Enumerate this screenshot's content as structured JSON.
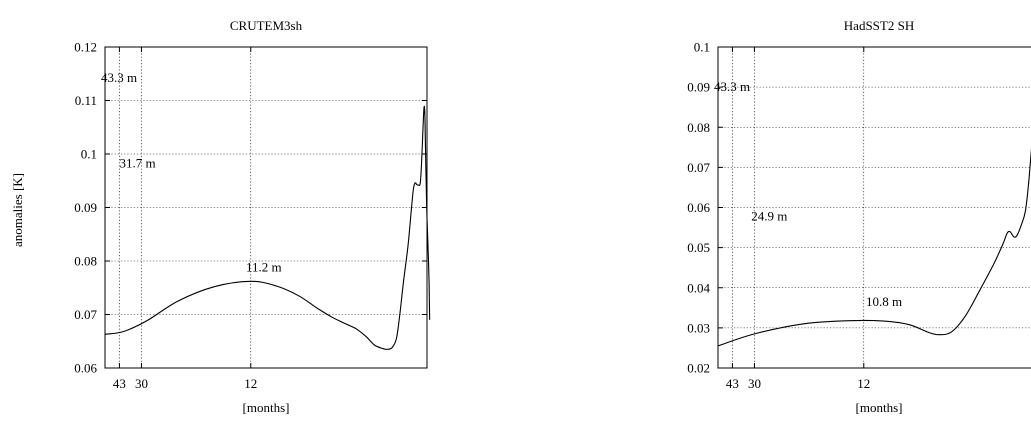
{
  "y_axis_label": "anomalies [K]",
  "chart_data": [
    {
      "type": "line",
      "title": "CRUTEM3sh",
      "xlabel": "[months]",
      "ylabel": "anomalies [K]",
      "x_scale": "reciprocal-period",
      "x_range": [
        60,
        6.1
      ],
      "ylim": [
        0.06,
        0.12
      ],
      "yticks": [
        0.06,
        0.07,
        0.08,
        0.09,
        0.1,
        0.11,
        0.12
      ],
      "ytick_labels": [
        "0.06",
        "0.07",
        "0.08",
        "0.09",
        "0.1",
        "0.11",
        "0.12"
      ],
      "xticks": [
        12,
        30,
        43
      ],
      "xtick_labels": [
        "12",
        "30",
        "43"
      ],
      "grid": true,
      "series": [
        {
          "points": [
            [
              60,
              0.0663
            ],
            [
              40,
              0.0668
            ],
            [
              28,
              0.0688
            ],
            [
              20,
              0.0725
            ],
            [
              15,
              0.0752
            ],
            [
              12,
              0.0762
            ],
            [
              10.5,
              0.0753
            ],
            [
              9.5,
              0.0735
            ],
            [
              8.8,
              0.0712
            ],
            [
              8.3,
              0.0695
            ],
            [
              7.9,
              0.0683
            ],
            [
              7.6,
              0.0673
            ],
            [
              7.35,
              0.0659
            ],
            [
              7.15,
              0.0643
            ],
            [
              6.95,
              0.0636
            ],
            [
              6.85,
              0.0635
            ],
            [
              6.76,
              0.0638
            ],
            [
              6.67,
              0.0655
            ],
            [
              6.6,
              0.07
            ],
            [
              6.53,
              0.076
            ],
            [
              6.44,
              0.083
            ],
            [
              6.38,
              0.0895
            ],
            [
              6.34,
              0.0935
            ],
            [
              6.31,
              0.0946
            ],
            [
              6.28,
              0.0943
            ],
            [
              6.25,
              0.0942
            ],
            [
              6.22,
              0.0944
            ],
            [
              6.2,
              0.097
            ],
            [
              6.18,
              0.102
            ],
            [
              6.16,
              0.107
            ],
            [
              6.15,
              0.1088
            ],
            [
              6.14,
              0.1082
            ],
            [
              6.13,
              0.104
            ],
            [
              6.12,
              0.098
            ],
            [
              6.105,
              0.09
            ],
            [
              6.09,
              0.085
            ],
            [
              6.075,
              0.08
            ],
            [
              6.065,
              0.076
            ],
            [
              6.06,
              0.072
            ],
            [
              6.055,
              0.069
            ]
          ]
        }
      ],
      "annotations": [
        {
          "text": "11.2 m",
          "x": 11.2,
          "y": 0.078
        },
        {
          "text": "31.7 m",
          "x": 31.7,
          "y": 0.0975
        },
        {
          "text": "43.3 m",
          "x": 43.3,
          "y": 0.1135
        }
      ]
    },
    {
      "type": "line",
      "title": "HadSST2 SH",
      "xlabel": "[months]",
      "ylabel": "",
      "x_scale": "reciprocal-period",
      "x_range": [
        60,
        6.1
      ],
      "ylim": [
        0.02,
        0.1
      ],
      "yticks": [
        0.02,
        0.03,
        0.04,
        0.05,
        0.06,
        0.07,
        0.08,
        0.09,
        0.1
      ],
      "ytick_labels": [
        "0.02",
        "0.03",
        "0.04",
        "0.05",
        "0.06",
        "0.07",
        "0.08",
        "0.09",
        "0.1"
      ],
      "xticks": [
        12,
        30,
        43
      ],
      "xtick_labels": [
        "12",
        "30",
        "43"
      ],
      "grid": true,
      "series": [
        {
          "points": [
            [
              60,
              0.0255
            ],
            [
              30,
              0.0285
            ],
            [
              18,
              0.031
            ],
            [
              13,
              0.0318
            ],
            [
              10.8,
              0.0317
            ],
            [
              9.6,
              0.0308
            ],
            [
              8.9,
              0.029
            ],
            [
              8.5,
              0.0283
            ],
            [
              8.1,
              0.029
            ],
            [
              7.7,
              0.033
            ],
            [
              7.3,
              0.04
            ],
            [
              7.0,
              0.046
            ],
            [
              6.8,
              0.051
            ],
            [
              6.72,
              0.0535
            ],
            [
              6.66,
              0.054
            ],
            [
              6.58,
              0.0527
            ],
            [
              6.52,
              0.053
            ],
            [
              6.44,
              0.0555
            ],
            [
              6.36,
              0.059
            ],
            [
              6.3,
              0.066
            ],
            [
              6.24,
              0.076
            ],
            [
              6.19,
              0.083
            ],
            [
              6.15,
              0.084
            ],
            [
              6.12,
              0.08
            ],
            [
              6.1,
              0.072
            ],
            [
              6.08,
              0.065
            ],
            [
              6.065,
              0.062
            ],
            [
              6.05,
              0.0605
            ]
          ]
        }
      ],
      "annotations": [
        {
          "text": "10.8 m",
          "x": 10.8,
          "y": 0.0355
        },
        {
          "text": "24.9 m",
          "x": 24.9,
          "y": 0.0567
        },
        {
          "text": "43.3 m",
          "x": 43.3,
          "y": 0.089
        }
      ]
    }
  ]
}
